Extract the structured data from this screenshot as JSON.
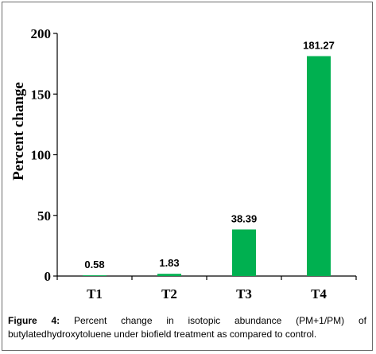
{
  "chart_data": {
    "type": "bar",
    "categories": [
      "T1",
      "T2",
      "T3",
      "T4"
    ],
    "values": [
      0.58,
      1.83,
      38.39,
      181.27
    ],
    "data_labels": [
      "0.58",
      "1.83",
      "38.39",
      "181.27"
    ],
    "ylabel": "Percent change",
    "xlabel": "",
    "ylim": [
      0,
      200
    ],
    "yticks": [
      0,
      50,
      100,
      150,
      200
    ],
    "ytick_labels": [
      "0",
      "50",
      "100",
      "150",
      "200"
    ],
    "bar_color": "#00b050",
    "grid": false,
    "legend": false
  },
  "caption": {
    "label": "Figure 4:",
    "text": "Percent change in isotopic abundance (PM+1/PM) of butylatedhydroxytoluene under biofield treatment as compared to control."
  }
}
